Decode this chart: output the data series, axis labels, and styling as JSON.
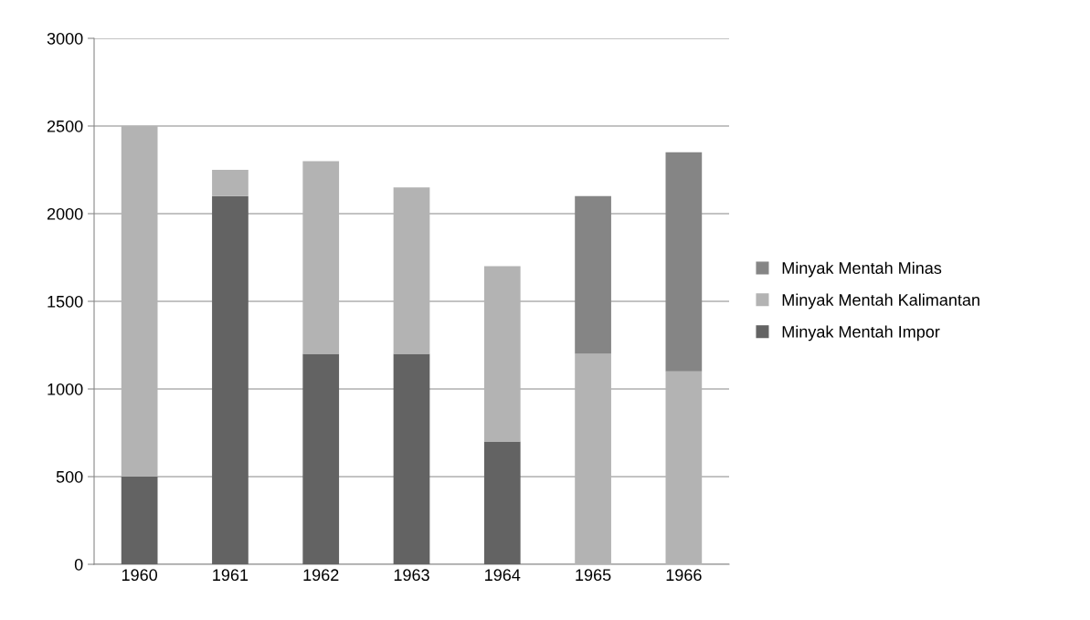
{
  "chart_data": {
    "type": "bar",
    "stacked": true,
    "categories": [
      "1960",
      "1961",
      "1962",
      "1963",
      "1964",
      "1965",
      "1966"
    ],
    "series": [
      {
        "name": "Minyak Mentah Impor",
        "color": "#636363",
        "values": [
          500,
          2100,
          1200,
          1200,
          700,
          0,
          0
        ]
      },
      {
        "name": "Minyak Mentah Kalimantan",
        "color": "#b3b3b3",
        "values": [
          2000,
          150,
          1100,
          950,
          1000,
          1200,
          1100
        ]
      },
      {
        "name": "Minyak Mentah Minas",
        "color": "#858585",
        "values": [
          0,
          0,
          0,
          0,
          0,
          900,
          1250
        ]
      }
    ],
    "ylim": [
      0,
      3000
    ],
    "yticks": [
      0,
      500,
      1000,
      1500,
      2000,
      2500,
      3000
    ],
    "grid": "y",
    "legend": "right"
  }
}
